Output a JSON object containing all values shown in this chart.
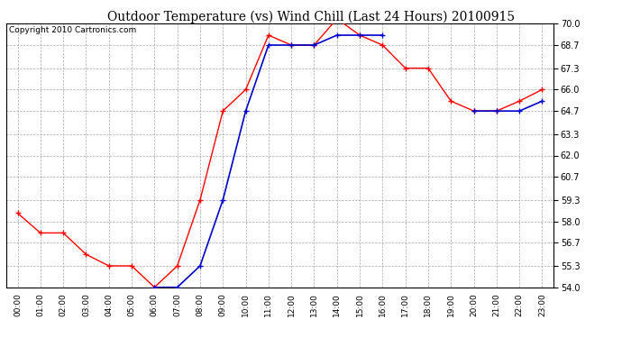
{
  "title": "Outdoor Temperature (vs) Wind Chill (Last 24 Hours) 20100915",
  "copyright": "Copyright 2010 Cartronics.com",
  "x_labels": [
    "00:00",
    "01:00",
    "02:00",
    "03:00",
    "04:00",
    "05:00",
    "06:00",
    "07:00",
    "08:00",
    "09:00",
    "10:00",
    "11:00",
    "12:00",
    "13:00",
    "14:00",
    "15:00",
    "16:00",
    "17:00",
    "18:00",
    "19:00",
    "20:00",
    "21:00",
    "22:00",
    "23:00"
  ],
  "temp_red": [
    58.5,
    57.3,
    57.3,
    56.0,
    55.3,
    55.3,
    54.0,
    55.3,
    59.3,
    64.7,
    66.0,
    69.3,
    68.7,
    68.7,
    70.3,
    69.3,
    68.7,
    67.3,
    67.3,
    65.3,
    64.7,
    64.7,
    65.3,
    66.0
  ],
  "wind_blue": [
    null,
    null,
    null,
    null,
    null,
    null,
    54.0,
    54.0,
    55.3,
    59.3,
    64.7,
    68.7,
    68.7,
    68.7,
    69.3,
    69.3,
    69.3,
    null,
    null,
    null,
    64.7,
    64.7,
    64.7,
    65.3
  ],
  "ylim": [
    54.0,
    70.0
  ],
  "yticks": [
    54.0,
    55.3,
    56.7,
    58.0,
    59.3,
    60.7,
    62.0,
    63.3,
    64.7,
    66.0,
    67.3,
    68.7,
    70.0
  ],
  "red_color": "#ff0000",
  "blue_color": "#0000cc",
  "bg_color": "#ffffff",
  "grid_color": "#aaaaaa",
  "title_fontsize": 10,
  "copyright_fontsize": 6.5
}
